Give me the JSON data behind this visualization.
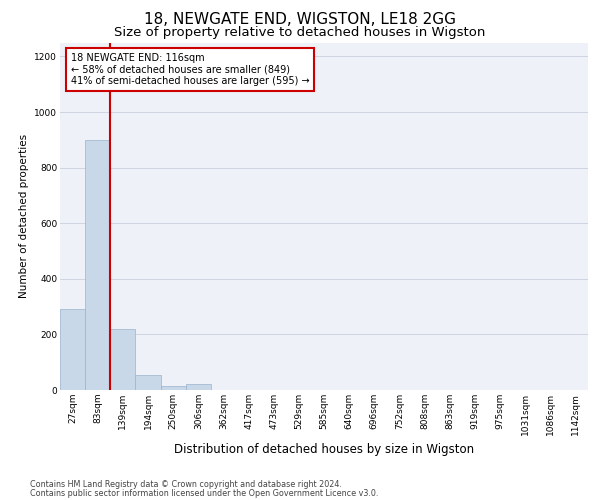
{
  "title": "18, NEWGATE END, WIGSTON, LE18 2GG",
  "subtitle": "Size of property relative to detached houses in Wigston",
  "xlabel": "Distribution of detached houses by size in Wigston",
  "ylabel": "Number of detached properties",
  "bar_labels": [
    "27sqm",
    "83sqm",
    "139sqm",
    "194sqm",
    "250sqm",
    "306sqm",
    "362sqm",
    "417sqm",
    "473sqm",
    "529sqm",
    "585sqm",
    "640sqm",
    "696sqm",
    "752sqm",
    "808sqm",
    "863sqm",
    "919sqm",
    "975sqm",
    "1031sqm",
    "1086sqm",
    "1142sqm"
  ],
  "bar_heights": [
    290,
    900,
    220,
    55,
    15,
    20,
    0,
    0,
    0,
    0,
    0,
    0,
    0,
    0,
    0,
    0,
    0,
    0,
    0,
    0,
    0
  ],
  "bar_color": "#c8d8e8",
  "bar_edgecolor": "#9ab4cc",
  "property_line_color": "#cc0000",
  "annotation_text": "18 NEWGATE END: 116sqm\n← 58% of detached houses are smaller (849)\n41% of semi-detached houses are larger (595) →",
  "annotation_box_facecolor": "#ffffff",
  "annotation_box_edgecolor": "#cc0000",
  "ylim": [
    0,
    1250
  ],
  "yticks": [
    0,
    200,
    400,
    600,
    800,
    1000,
    1200
  ],
  "footer_line1": "Contains HM Land Registry data © Crown copyright and database right 2024.",
  "footer_line2": "Contains public sector information licensed under the Open Government Licence v3.0.",
  "bg_color": "#ffffff",
  "plot_bg_color": "#eef2f8",
  "grid_color": "#cdd5e0",
  "title_fontsize": 11,
  "subtitle_fontsize": 9.5,
  "ylabel_fontsize": 7.5,
  "xlabel_fontsize": 8.5,
  "tick_fontsize": 6.5,
  "annotation_fontsize": 7,
  "footer_fontsize": 5.8
}
